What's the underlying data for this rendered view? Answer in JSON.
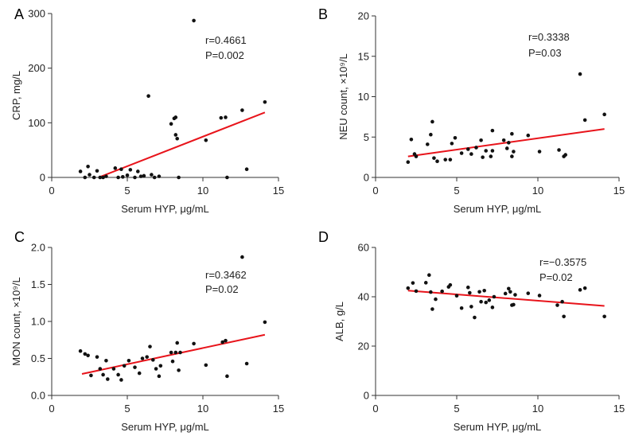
{
  "chart_data": [
    {
      "type": "scatter",
      "panel": "A",
      "title": "",
      "xlabel": "Serum HYP, μg/mL",
      "ylabel": "CRP, mg/L",
      "xlim": [
        0,
        15
      ],
      "ylim": [
        0,
        300
      ],
      "xticks": [
        0,
        5,
        10,
        15
      ],
      "yticks": [
        0,
        100,
        200,
        300
      ],
      "annotations": [
        "r=0.4661",
        "P=0.002"
      ],
      "fit_line": {
        "x": [
          3.1,
          14.1
        ],
        "y": [
          0,
          119
        ]
      },
      "points": [
        [
          1.9,
          11
        ],
        [
          2.2,
          0
        ],
        [
          2.4,
          20
        ],
        [
          2.5,
          5
        ],
        [
          2.8,
          0
        ],
        [
          3.0,
          12
        ],
        [
          3.2,
          0
        ],
        [
          3.4,
          0
        ],
        [
          3.6,
          2
        ],
        [
          4.2,
          17
        ],
        [
          4.4,
          0
        ],
        [
          4.6,
          15
        ],
        [
          4.7,
          1
        ],
        [
          5.0,
          4
        ],
        [
          5.2,
          14
        ],
        [
          5.5,
          0
        ],
        [
          5.7,
          11
        ],
        [
          5.9,
          2
        ],
        [
          6.1,
          3
        ],
        [
          6.4,
          149
        ],
        [
          6.6,
          5
        ],
        [
          6.8,
          0
        ],
        [
          7.1,
          2
        ],
        [
          7.9,
          98
        ],
        [
          8.1,
          108
        ],
        [
          8.2,
          110
        ],
        [
          8.2,
          78
        ],
        [
          8.3,
          71
        ],
        [
          8.4,
          0
        ],
        [
          9.4,
          287
        ],
        [
          10.2,
          68
        ],
        [
          11.2,
          109
        ],
        [
          11.5,
          110
        ],
        [
          11.6,
          0
        ],
        [
          12.6,
          123
        ],
        [
          12.9,
          15
        ],
        [
          14.1,
          138
        ]
      ]
    },
    {
      "type": "scatter",
      "panel": "B",
      "title": "",
      "xlabel": "Serum HYP, μg/mL",
      "ylabel": "NEU count, ×10⁹/L",
      "xlim": [
        0,
        15
      ],
      "ylim": [
        0,
        20
      ],
      "xticks": [
        0,
        5,
        10,
        15
      ],
      "yticks": [
        0,
        5,
        10,
        15,
        20
      ],
      "annotations": [
        "r=0.3338",
        "P=0.03"
      ],
      "fit_line": {
        "x": [
          2.0,
          14.1
        ],
        "y": [
          2.6,
          6.0
        ]
      },
      "points": [
        [
          2.0,
          1.9
        ],
        [
          2.2,
          4.7
        ],
        [
          2.4,
          2.9
        ],
        [
          2.5,
          2.6
        ],
        [
          3.2,
          4.1
        ],
        [
          3.4,
          5.3
        ],
        [
          3.5,
          6.9
        ],
        [
          3.6,
          2.4
        ],
        [
          3.8,
          2.0
        ],
        [
          4.3,
          2.2
        ],
        [
          4.6,
          2.2
        ],
        [
          4.7,
          4.2
        ],
        [
          4.9,
          4.9
        ],
        [
          5.3,
          3.0
        ],
        [
          5.7,
          3.5
        ],
        [
          5.9,
          2.9
        ],
        [
          6.2,
          3.7
        ],
        [
          6.5,
          4.6
        ],
        [
          6.6,
          2.5
        ],
        [
          6.8,
          3.3
        ],
        [
          7.1,
          2.6
        ],
        [
          7.2,
          3.3
        ],
        [
          7.2,
          5.8
        ],
        [
          7.9,
          4.6
        ],
        [
          8.1,
          3.6
        ],
        [
          8.2,
          4.3
        ],
        [
          8.4,
          5.4
        ],
        [
          8.4,
          2.6
        ],
        [
          8.5,
          3.2
        ],
        [
          9.4,
          5.2
        ],
        [
          10.1,
          3.2
        ],
        [
          11.3,
          3.4
        ],
        [
          11.6,
          2.6
        ],
        [
          11.7,
          2.8
        ],
        [
          12.6,
          12.8
        ],
        [
          12.9,
          7.1
        ],
        [
          14.1,
          7.8
        ]
      ]
    },
    {
      "type": "scatter",
      "panel": "C",
      "title": "",
      "xlabel": "Serum HYP, μg/mL",
      "ylabel": "MON count, ×10⁹/L",
      "xlim": [
        0,
        15
      ],
      "ylim": [
        0,
        2.0
      ],
      "xticks": [
        0,
        5,
        10,
        15
      ],
      "yticks": [
        0.0,
        0.5,
        1.0,
        1.5,
        2.0
      ],
      "annotations": [
        "r=0.3462",
        "P=0.02"
      ],
      "fit_line": {
        "x": [
          2.0,
          14.1
        ],
        "y": [
          0.29,
          0.82
        ]
      },
      "points": [
        [
          1.9,
          0.6
        ],
        [
          2.2,
          0.56
        ],
        [
          2.4,
          0.54
        ],
        [
          2.6,
          0.27
        ],
        [
          3.0,
          0.52
        ],
        [
          3.2,
          0.36
        ],
        [
          3.4,
          0.28
        ],
        [
          3.6,
          0.47
        ],
        [
          3.7,
          0.22
        ],
        [
          4.1,
          0.36
        ],
        [
          4.4,
          0.28
        ],
        [
          4.6,
          0.21
        ],
        [
          4.8,
          0.4
        ],
        [
          5.1,
          0.47
        ],
        [
          5.5,
          0.38
        ],
        [
          5.8,
          0.3
        ],
        [
          6.0,
          0.5
        ],
        [
          6.3,
          0.52
        ],
        [
          6.5,
          0.66
        ],
        [
          6.7,
          0.48
        ],
        [
          6.9,
          0.36
        ],
        [
          7.1,
          0.26
        ],
        [
          7.2,
          0.4
        ],
        [
          7.9,
          0.58
        ],
        [
          8.0,
          0.46
        ],
        [
          8.2,
          0.58
        ],
        [
          8.3,
          0.71
        ],
        [
          8.4,
          0.34
        ],
        [
          8.5,
          0.58
        ],
        [
          9.4,
          0.7
        ],
        [
          10.2,
          0.41
        ],
        [
          11.3,
          0.72
        ],
        [
          11.5,
          0.74
        ],
        [
          11.6,
          0.26
        ],
        [
          12.6,
          1.87
        ],
        [
          12.9,
          0.43
        ],
        [
          14.1,
          0.99
        ]
      ]
    },
    {
      "type": "scatter",
      "panel": "D",
      "title": "",
      "xlabel": "Serum HYP, μg/mL",
      "ylabel": "ALB, g/L",
      "xlim": [
        0,
        15
      ],
      "ylim": [
        0,
        60
      ],
      "xticks": [
        0,
        5,
        10,
        15
      ],
      "yticks": [
        0,
        20,
        40,
        60
      ],
      "annotations": [
        "r=−0.3575",
        "P=0.02"
      ],
      "fit_line": {
        "x": [
          2.0,
          14.1
        ],
        "y": [
          42.5,
          36.3
        ]
      },
      "points": [
        [
          2.0,
          43.5
        ],
        [
          2.3,
          45.6
        ],
        [
          2.5,
          42.3
        ],
        [
          3.1,
          45.7
        ],
        [
          3.3,
          48.8
        ],
        [
          3.4,
          41.9
        ],
        [
          3.5,
          35.0
        ],
        [
          3.7,
          39.0
        ],
        [
          4.1,
          42.2
        ],
        [
          4.5,
          44.0
        ],
        [
          4.6,
          44.8
        ],
        [
          5.0,
          40.4
        ],
        [
          5.3,
          35.4
        ],
        [
          5.7,
          43.8
        ],
        [
          5.8,
          41.6
        ],
        [
          5.9,
          36.0
        ],
        [
          6.1,
          31.6
        ],
        [
          6.4,
          42.0
        ],
        [
          6.5,
          38.0
        ],
        [
          6.7,
          42.5
        ],
        [
          6.8,
          37.7
        ],
        [
          7.0,
          38.6
        ],
        [
          7.2,
          35.7
        ],
        [
          7.3,
          40.0
        ],
        [
          8.0,
          41.3
        ],
        [
          8.2,
          43.3
        ],
        [
          8.3,
          42.0
        ],
        [
          8.4,
          36.6
        ],
        [
          8.5,
          36.8
        ],
        [
          8.6,
          40.8
        ],
        [
          9.4,
          41.4
        ],
        [
          10.1,
          40.5
        ],
        [
          11.2,
          36.6
        ],
        [
          11.5,
          38.0
        ],
        [
          11.6,
          32.0
        ],
        [
          12.6,
          42.8
        ],
        [
          12.9,
          43.5
        ],
        [
          14.1,
          32.0
        ]
      ]
    }
  ]
}
